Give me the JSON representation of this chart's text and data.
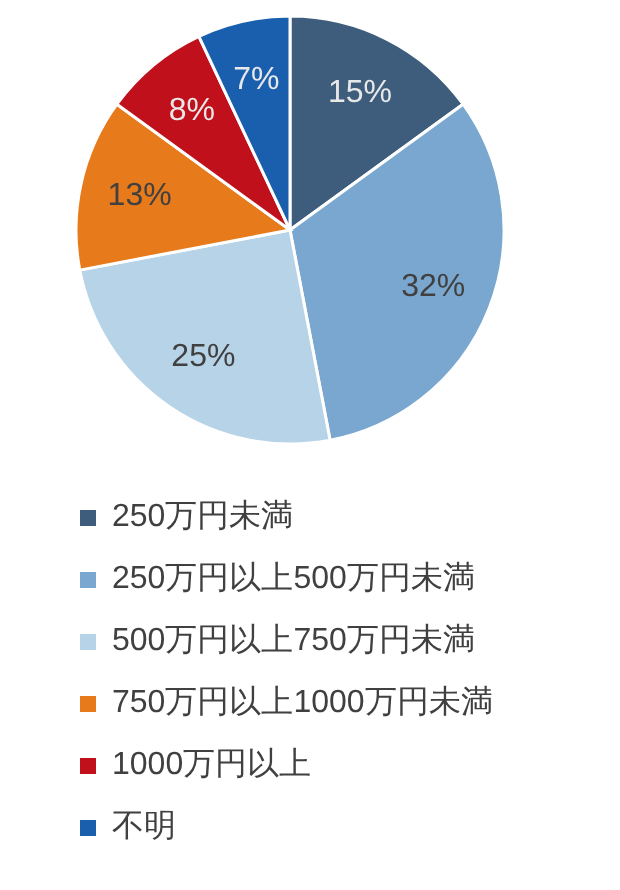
{
  "chart_data": {
    "type": "pie",
    "categories": [
      "250万円未満",
      "250万円以上500万円未満",
      "500万円以上750万円未満",
      "750万円以上1000万円未満",
      "1000万円以上",
      "不明"
    ],
    "values": [
      15,
      32,
      25,
      13,
      8,
      7
    ],
    "value_labels": [
      "15%",
      "32%",
      "25%",
      "13%",
      "8%",
      "7%"
    ],
    "colors": [
      "#3e5d7c",
      "#7aa7cf",
      "#b7d3e7",
      "#e77b1b",
      "#c0101c",
      "#1a5fae"
    ],
    "legend": "bottom"
  }
}
